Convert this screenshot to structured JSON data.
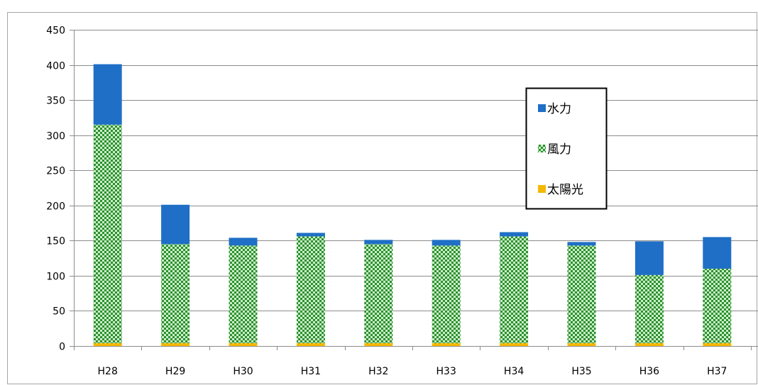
{
  "chart_data": {
    "type": "bar",
    "stacked": true,
    "categories": [
      "H28",
      "H29",
      "H30",
      "H31",
      "H32",
      "H33",
      "H34",
      "H35",
      "H36",
      "H37"
    ],
    "series": [
      {
        "name": "太陽光",
        "color": "#f5b800",
        "values": [
          4,
          4,
          4,
          4,
          4,
          4,
          4,
          4,
          4,
          4
        ]
      },
      {
        "name": "風力",
        "color": "#3a9a3a",
        "pattern": "checker",
        "values": [
          311,
          141,
          139,
          152,
          141,
          139,
          152,
          139,
          97,
          106
        ]
      },
      {
        "name": "水力",
        "color": "#1f6fc6",
        "values": [
          86,
          56,
          11,
          5,
          6,
          8,
          6,
          5,
          48,
          45
        ]
      }
    ],
    "yticks": [
      "0",
      "50",
      "100",
      "150",
      "200",
      "250",
      "300",
      "350",
      "400",
      "450"
    ],
    "ylim": [
      0,
      450
    ],
    "grid": true,
    "legend_position": "right",
    "legend_order": [
      "水力",
      "風力",
      "太陽光"
    ],
    "title": "",
    "xlabel": "",
    "ylabel": ""
  }
}
